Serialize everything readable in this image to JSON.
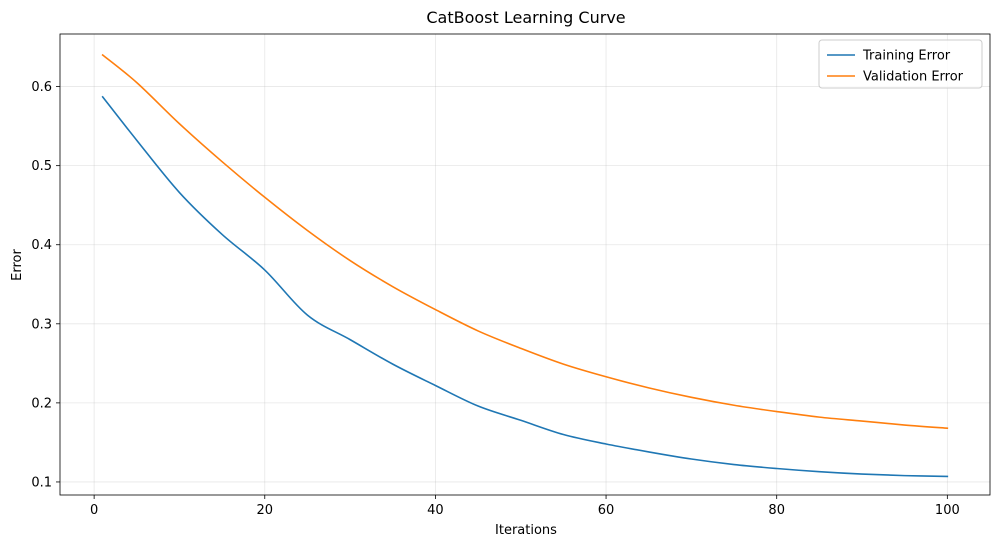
{
  "chart_data": {
    "type": "line",
    "title": "CatBoost Learning Curve",
    "xlabel": "Iterations",
    "ylabel": "Error",
    "xlim": [
      -4,
      105
    ],
    "ylim": [
      0.0835,
      0.6665
    ],
    "xticks": [
      0,
      20,
      40,
      60,
      80,
      100
    ],
    "yticks": [
      0.1,
      0.2,
      0.3,
      0.4,
      0.5,
      0.6
    ],
    "xtick_labels": [
      "0",
      "20",
      "40",
      "60",
      "80",
      "100"
    ],
    "ytick_labels": [
      "0.1",
      "0.2",
      "0.3",
      "0.4",
      "0.5",
      "0.6"
    ],
    "grid": true,
    "legend_position": "top-right",
    "series": [
      {
        "name": "Training Error",
        "color": "#1f77b4",
        "x": [
          1,
          5,
          10,
          15,
          20,
          25,
          30,
          35,
          40,
          45,
          50,
          55,
          60,
          65,
          70,
          75,
          80,
          85,
          90,
          95,
          100
        ],
        "values": [
          0.587,
          0.532,
          0.466,
          0.413,
          0.368,
          0.311,
          0.28,
          0.249,
          0.222,
          0.196,
          0.178,
          0.16,
          0.148,
          0.138,
          0.129,
          0.122,
          0.117,
          0.113,
          0.11,
          0.108,
          0.107
        ]
      },
      {
        "name": "Validation Error",
        "color": "#ff7f0e",
        "x": [
          1,
          5,
          10,
          15,
          20,
          25,
          30,
          35,
          40,
          45,
          50,
          55,
          60,
          65,
          70,
          75,
          80,
          85,
          90,
          95,
          100
        ],
        "values": [
          0.64,
          0.605,
          0.553,
          0.505,
          0.46,
          0.418,
          0.38,
          0.347,
          0.318,
          0.291,
          0.269,
          0.249,
          0.233,
          0.219,
          0.207,
          0.197,
          0.189,
          0.182,
          0.177,
          0.172,
          0.168
        ]
      }
    ]
  }
}
